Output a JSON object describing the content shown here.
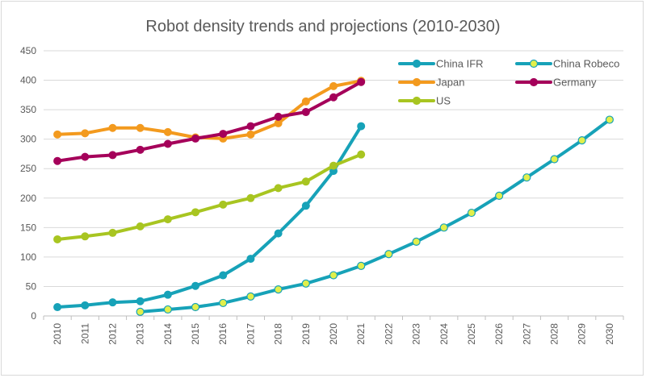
{
  "chart_data": {
    "type": "line",
    "title": "Robot density trends and projections (2010-2030)",
    "xlabel": "",
    "ylabel": "",
    "ylim": [
      0,
      450
    ],
    "yticks": [
      0,
      50,
      100,
      150,
      200,
      250,
      300,
      350,
      400,
      450
    ],
    "x": [
      "2010",
      "2011",
      "2012",
      "2013",
      "2014",
      "2015",
      "2016",
      "2017",
      "2018",
      "2019",
      "2020",
      "2021",
      "2022",
      "2023",
      "2024",
      "2025",
      "2026",
      "2027",
      "2028",
      "2029",
      "2030"
    ],
    "grid": true,
    "legend_position": "top-right",
    "series": [
      {
        "name": "China IFR",
        "color": "#17a2b8",
        "marker_fill": "#17a2b8",
        "values": [
          15,
          18,
          23,
          25,
          36,
          51,
          69,
          97,
          140,
          187,
          246,
          322,
          null,
          null,
          null,
          null,
          null,
          null,
          null,
          null,
          null
        ]
      },
      {
        "name": "China Robeco",
        "color": "#17a2b8",
        "marker_fill": "#e2ef4b",
        "values": [
          null,
          null,
          null,
          7,
          11,
          15,
          22,
          33,
          45,
          55,
          69,
          85,
          105,
          126,
          150,
          175,
          204,
          235,
          266,
          298,
          333
        ]
      },
      {
        "name": "Japan",
        "color": "#f39a1e",
        "marker_fill": "#f39a1e",
        "values": [
          308,
          310,
          319,
          319,
          312,
          303,
          301,
          308,
          327,
          364,
          390,
          399,
          null,
          null,
          null,
          null,
          null,
          null,
          null,
          null,
          null
        ]
      },
      {
        "name": "Germany",
        "color": "#a5005a",
        "marker_fill": "#a5005a",
        "values": [
          263,
          270,
          273,
          282,
          292,
          301,
          309,
          322,
          338,
          346,
          371,
          397,
          null,
          null,
          null,
          null,
          null,
          null,
          null,
          null,
          null
        ]
      },
      {
        "name": "US",
        "color": "#a8c521",
        "marker_fill": "#a8c521",
        "values": [
          130,
          135,
          141,
          152,
          164,
          176,
          189,
          200,
          217,
          228,
          255,
          274,
          null,
          null,
          null,
          null,
          null,
          null,
          null,
          null,
          null
        ]
      }
    ]
  }
}
